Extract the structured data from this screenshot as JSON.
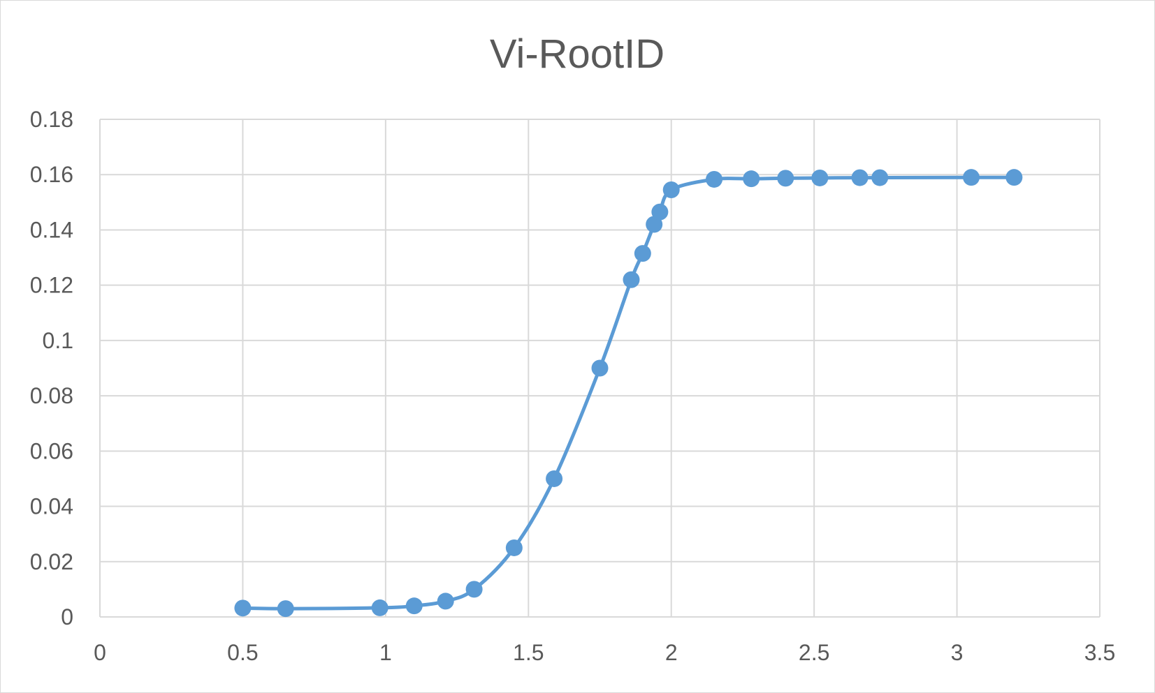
{
  "chart_data": {
    "type": "scatter",
    "title": "Vi-RootID",
    "xlabel": "",
    "ylabel": "",
    "xlim": [
      0,
      3.5
    ],
    "ylim": [
      0,
      0.18
    ],
    "x_ticks": [
      "0",
      "0.5",
      "1",
      "1.5",
      "2",
      "2.5",
      "3",
      "3.5"
    ],
    "y_ticks": [
      "0",
      "0.02",
      "0.04",
      "0.06",
      "0.08",
      "0.1",
      "0.12",
      "0.14",
      "0.16",
      "0.18"
    ],
    "grid": true,
    "legend": "none",
    "smooth_line": true,
    "series": [
      {
        "color": "#5b9bd5",
        "points": [
          {
            "x": 0.5,
            "y": 0.0032
          },
          {
            "x": 0.65,
            "y": 0.003
          },
          {
            "x": 0.98,
            "y": 0.0033
          },
          {
            "x": 1.1,
            "y": 0.004
          },
          {
            "x": 1.21,
            "y": 0.0057
          },
          {
            "x": 1.31,
            "y": 0.01
          },
          {
            "x": 1.45,
            "y": 0.025
          },
          {
            "x": 1.59,
            "y": 0.05
          },
          {
            "x": 1.75,
            "y": 0.09
          },
          {
            "x": 1.86,
            "y": 0.122
          },
          {
            "x": 1.9,
            "y": 0.1315
          },
          {
            "x": 1.94,
            "y": 0.142
          },
          {
            "x": 1.96,
            "y": 0.1465
          },
          {
            "x": 2.0,
            "y": 0.1545
          },
          {
            "x": 2.15,
            "y": 0.1583
          },
          {
            "x": 2.28,
            "y": 0.1585
          },
          {
            "x": 2.4,
            "y": 0.1587
          },
          {
            "x": 2.52,
            "y": 0.1588
          },
          {
            "x": 2.66,
            "y": 0.1589
          },
          {
            "x": 2.73,
            "y": 0.1589
          },
          {
            "x": 3.05,
            "y": 0.159
          },
          {
            "x": 3.2,
            "y": 0.159
          }
        ]
      }
    ]
  }
}
